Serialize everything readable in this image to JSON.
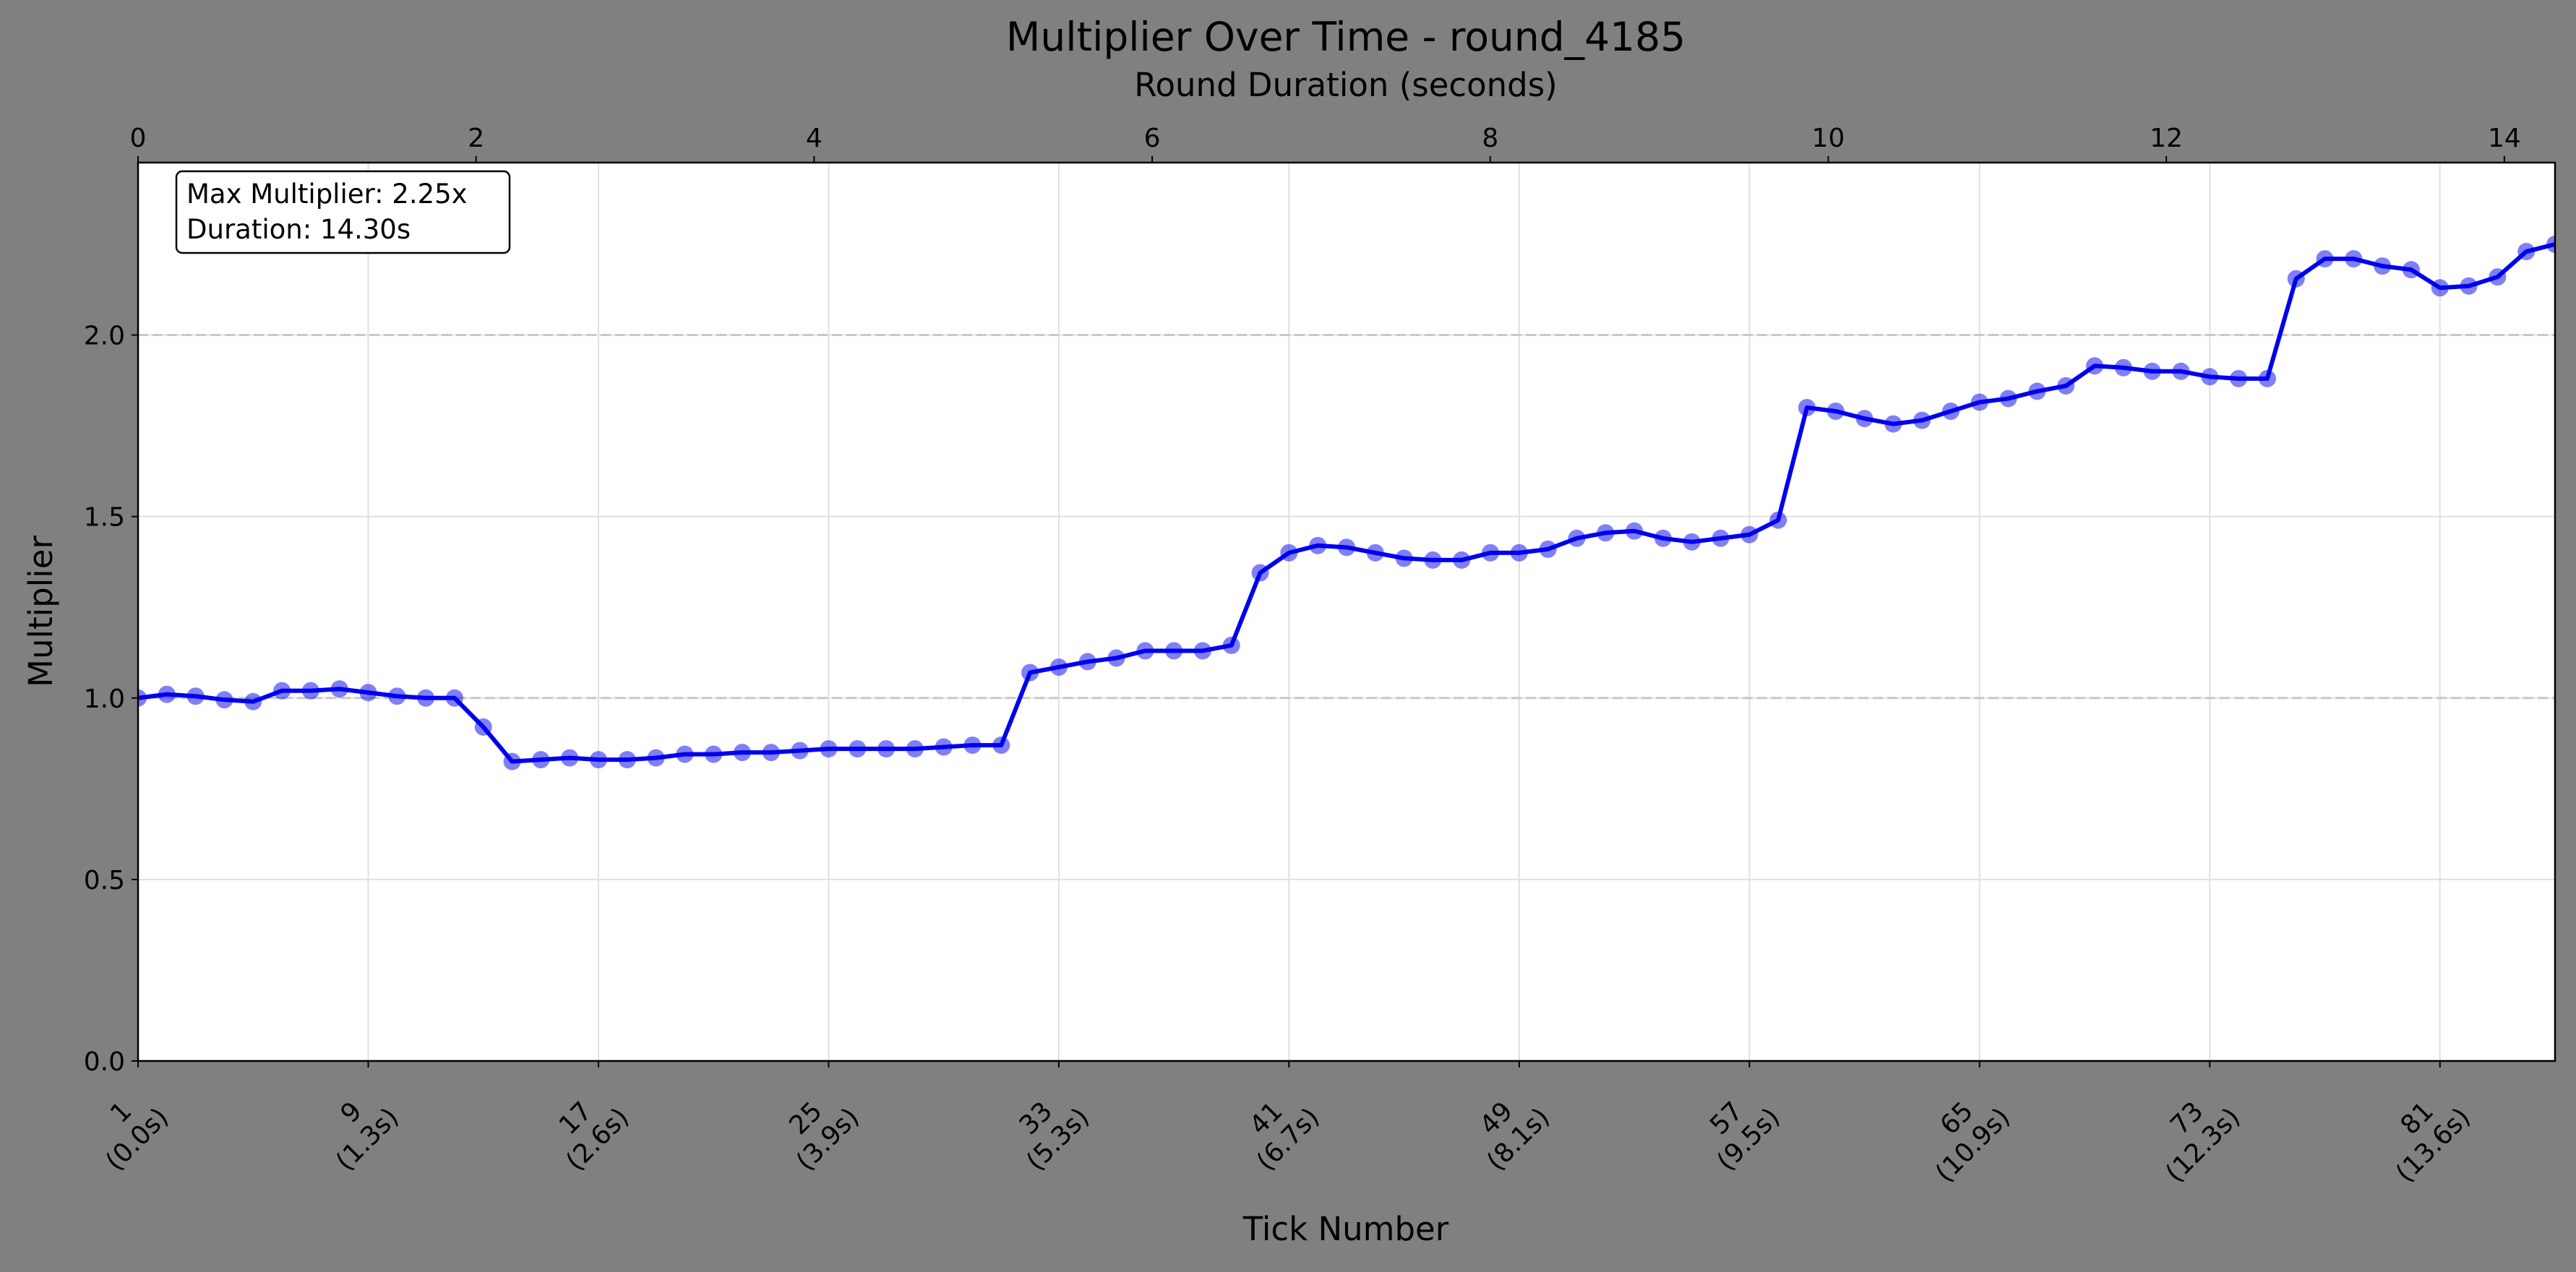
{
  "chart_data": {
    "type": "line",
    "title": "Multiplier Over Time - round_4185",
    "x_label": "Tick Number",
    "x2_label": "Round Duration (seconds)",
    "y_label": "Multiplier",
    "annotation": [
      "Max Multiplier: 2.25x",
      "Duration: 14.30s"
    ],
    "x": [
      1,
      2,
      3,
      4,
      5,
      6,
      7,
      8,
      9,
      10,
      11,
      12,
      13,
      14,
      15,
      16,
      17,
      18,
      19,
      20,
      21,
      22,
      23,
      24,
      25,
      26,
      27,
      28,
      29,
      30,
      31,
      32,
      33,
      34,
      35,
      36,
      37,
      38,
      39,
      40,
      41,
      42,
      43,
      44,
      45,
      46,
      47,
      48,
      49,
      50,
      51,
      52,
      53,
      54,
      55,
      56,
      57,
      58,
      59,
      60,
      61,
      62,
      63,
      64,
      65,
      66,
      67,
      68,
      69,
      70,
      71,
      72,
      73,
      74,
      75,
      76,
      77,
      78,
      79,
      80,
      81,
      82,
      83,
      84,
      85
    ],
    "series": [
      {
        "name": "Multiplier",
        "color": "#0000ee",
        "values": [
          1.0,
          1.01,
          1.005,
          0.995,
          0.99,
          1.02,
          1.02,
          1.025,
          1.015,
          1.005,
          1.0,
          1.0,
          0.92,
          0.825,
          0.83,
          0.835,
          0.83,
          0.83,
          0.835,
          0.845,
          0.845,
          0.85,
          0.85,
          0.855,
          0.86,
          0.86,
          0.86,
          0.86,
          0.865,
          0.87,
          0.87,
          1.07,
          1.085,
          1.1,
          1.11,
          1.13,
          1.13,
          1.13,
          1.145,
          1.345,
          1.4,
          1.42,
          1.415,
          1.4,
          1.385,
          1.38,
          1.38,
          1.4,
          1.4,
          1.41,
          1.44,
          1.455,
          1.46,
          1.44,
          1.43,
          1.44,
          1.45,
          1.49,
          1.8,
          1.79,
          1.77,
          1.755,
          1.765,
          1.79,
          1.815,
          1.825,
          1.845,
          1.86,
          1.915,
          1.91,
          1.9,
          1.9,
          1.885,
          1.88,
          1.88,
          2.155,
          2.21,
          2.21,
          2.19,
          2.18,
          2.13,
          2.135,
          2.16,
          2.23,
          2.25
        ]
      }
    ],
    "xlim": [
      1,
      85
    ],
    "xticks": [
      {
        "value": 1,
        "label": "1\n(0.0s)"
      },
      {
        "value": 9,
        "label": "9\n(1.3s)"
      },
      {
        "value": 17,
        "label": "17\n(2.6s)"
      },
      {
        "value": 25,
        "label": "25\n(3.9s)"
      },
      {
        "value": 33,
        "label": "33\n(5.3s)"
      },
      {
        "value": 41,
        "label": "41\n(6.7s)"
      },
      {
        "value": 49,
        "label": "49\n(8.1s)"
      },
      {
        "value": 57,
        "label": "57\n(9.5s)"
      },
      {
        "value": 65,
        "label": "65\n(10.9s)"
      },
      {
        "value": 73,
        "label": "73\n(12.3s)"
      },
      {
        "value": 81,
        "label": "81\n(13.6s)"
      }
    ],
    "x2lim": [
      0,
      14.3
    ],
    "x2ticks": [
      0,
      2,
      4,
      6,
      8,
      10,
      12,
      14
    ],
    "ylim": [
      0,
      2.475
    ],
    "yticks": [
      {
        "value": 0,
        "label": "0.0"
      },
      {
        "value": 0.5,
        "label": "0.5"
      },
      {
        "value": 1,
        "label": "1.0"
      },
      {
        "value": 1.5,
        "label": "1.5"
      },
      {
        "value": 2,
        "label": "2.0"
      }
    ],
    "hlines": [
      1,
      2
    ],
    "grid": true
  }
}
